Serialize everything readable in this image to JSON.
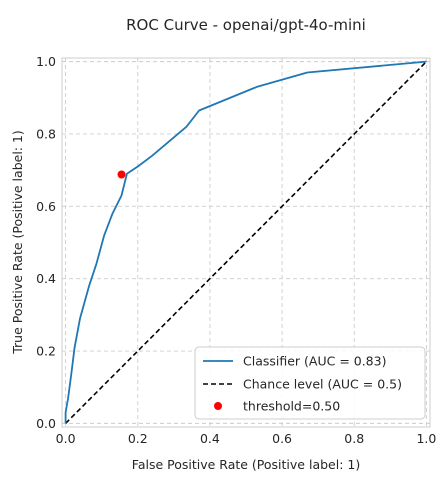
{
  "chart_data": {
    "type": "line",
    "title": "ROC Curve - openai/gpt-4o-mini",
    "xlabel": "False Positive Rate (Positive label: 1)",
    "ylabel": "True Positive Rate (Positive label: 1)",
    "xlim": [
      -0.01,
      1.01
    ],
    "ylim": [
      -0.01,
      1.01
    ],
    "xticks": [
      "0.0",
      "0.2",
      "0.4",
      "0.6",
      "0.8",
      "1.0"
    ],
    "yticks": [
      "0.0",
      "0.2",
      "0.4",
      "0.6",
      "0.8",
      "1.0"
    ],
    "grid": true,
    "grid_style": "dashed",
    "legend_position": "bottom-right",
    "series": [
      {
        "name": "Classifier (AUC = 0.83)",
        "style": "solid",
        "color": "#1f77b4",
        "x": [
          0.0,
          0.0,
          0.007,
          0.015,
          0.025,
          0.04,
          0.065,
          0.085,
          0.107,
          0.13,
          0.155,
          0.17,
          0.2,
          0.24,
          0.335,
          0.37,
          0.53,
          0.67,
          1.0
        ],
        "y": [
          0.0,
          0.03,
          0.07,
          0.13,
          0.21,
          0.29,
          0.38,
          0.44,
          0.52,
          0.58,
          0.63,
          0.69,
          0.71,
          0.74,
          0.82,
          0.865,
          0.93,
          0.97,
          1.0
        ]
      },
      {
        "name": "Chance level (AUC = 0.5)",
        "style": "dashed",
        "color": "#000000",
        "x": [
          0,
          1
        ],
        "y": [
          0,
          1
        ]
      }
    ],
    "points": [
      {
        "name": "threshold=0.50",
        "x": 0.155,
        "y": 0.688,
        "color": "#ff0000"
      }
    ]
  }
}
